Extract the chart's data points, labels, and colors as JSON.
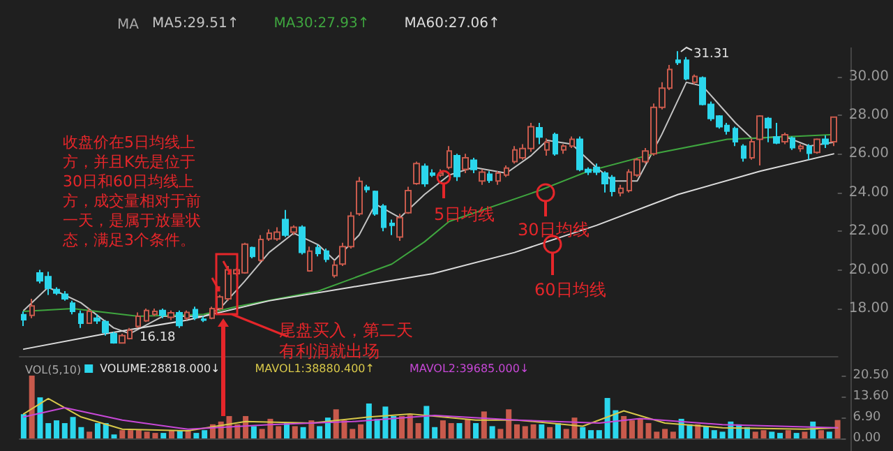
{
  "chart_data": [
    {
      "type": "candlestick",
      "legend_title": "MA",
      "legend": "top left",
      "grid": false,
      "tick_labels": "y",
      "colors": [
        "#2bd6ec",
        "#c85a4c",
        "#2bd6ec",
        "#2bd6ec",
        "#2bd6ec",
        "#2bd6ec",
        "#2bd6ec",
        "#2bd6ec",
        "#c85a4c",
        "#2bd6ec",
        "#2bd6ec",
        "#2bd6ec",
        "#c85a4c",
        "#c85a4c",
        "#c85a4c",
        "#c85a4c",
        "#c85a4c",
        "#2bd6ec",
        "#c85a4c",
        "#2bd6ec",
        "#c85a4c",
        "#2bd6ec",
        "#2bd6ec",
        "#c85a4c",
        "#c85a4c",
        "#c85a4c",
        "#c85a4c",
        "#c85a4c",
        "#2bd6ec",
        "#c85a4c",
        "#c85a4c",
        "#c85a4c",
        "#2bd6ec",
        "#c85a4c",
        "#2bd6ec",
        "#c85a4c",
        "#2bd6ec",
        "#2bd6ec",
        "#c85a4c",
        "#c85a4c",
        "#c85a4c",
        "#c85a4c",
        "#2bd6ec",
        "#2bd6ec",
        "#2bd6ec",
        "#2bd6ec",
        "#c85a4c",
        "#c85a4c",
        "#c85a4c",
        "#2bd6ec",
        "#2bd6ec",
        "#c85a4c",
        "#c85a4c",
        "#2bd6ec",
        "#c85a4c",
        "#2bd6ec",
        "#c85a4c",
        "#2bd6ec",
        "#c85a4c",
        "#c85a4c",
        "#c85a4c",
        "#c85a4c",
        "#c85a4c",
        "#2bd6ec",
        "#c85a4c",
        "#2bd6ec",
        "#c85a4c",
        "#c85a4c",
        "#2bd6ec",
        "#2bd6ec",
        "#2bd6ec",
        "#2bd6ec",
        "#2bd6ec",
        "#c85a4c",
        "#c85a4c",
        "#c85a4c",
        "#c85a4c",
        "#c85a4c",
        "#c85a4c",
        "#c85a4c",
        "#2bd6ec",
        "#2bd6ec",
        "#c85a4c",
        "#2bd6ec",
        "#2bd6ec",
        "#2bd6ec",
        "#2bd6ec",
        "#2bd6ec",
        "#2bd6ec",
        "#c85a4c",
        "#c85a4c",
        "#2bd6ec",
        "#2bd6ec",
        "#c85a4c",
        "#2bd6ec",
        "#c85a4c",
        "#2bd6ec",
        "#c85a4c",
        "#2bd6ec",
        "#c85a4c"
      ],
      "categories": [
        null,
        null,
        null,
        null,
        null,
        null,
        null,
        null,
        null,
        null,
        null,
        null,
        null,
        null,
        null,
        null,
        null,
        null,
        null,
        null,
        null,
        null,
        null,
        null,
        null,
        null,
        null,
        null,
        null,
        null,
        null,
        null,
        null,
        null,
        null,
        null,
        null,
        null,
        null,
        null,
        null,
        null,
        null,
        null,
        null,
        null,
        null,
        null,
        null,
        null,
        null,
        null,
        null,
        null,
        null,
        null,
        null,
        null,
        null,
        null,
        null,
        null,
        null,
        null,
        null,
        null,
        null,
        null,
        null,
        null,
        null,
        null,
        null,
        null,
        null,
        null,
        null,
        null,
        null,
        null,
        null,
        null,
        null,
        null,
        null,
        null,
        null,
        null,
        null,
        null,
        null,
        null,
        null,
        null,
        null,
        null,
        null,
        null,
        null,
        null
      ],
      "ylim": [
        15.5,
        31.5
      ],
      "yticks": [
        {
          "value": 18,
          "label": "18.00"
        },
        {
          "value": 20,
          "label": "20.00"
        },
        {
          "value": 22,
          "label": "22.00"
        },
        {
          "value": 24,
          "label": "24.00"
        },
        {
          "value": 26,
          "label": "26.00"
        },
        {
          "value": 28,
          "label": "28.00"
        },
        {
          "value": 30,
          "label": "30.00"
        }
      ],
      "ohlc": [
        [
          17.68,
          17.85,
          17.1,
          17.42
        ],
        [
          17.65,
          18.5,
          17.5,
          18.13
        ],
        [
          19.84,
          20.0,
          19.3,
          19.43
        ],
        [
          19.65,
          19.9,
          18.7,
          19.05
        ],
        [
          18.98,
          19.1,
          18.7,
          18.8
        ],
        [
          18.74,
          18.9,
          18.4,
          18.5
        ],
        [
          18.28,
          18.4,
          17.7,
          17.85
        ],
        [
          17.73,
          17.9,
          17.0,
          17.24
        ],
        [
          17.24,
          18.0,
          17.2,
          17.85
        ],
        [
          17.5,
          17.7,
          17.2,
          17.37
        ],
        [
          17.32,
          17.4,
          16.6,
          16.76
        ],
        [
          16.7,
          16.8,
          16.18,
          16.23
        ],
        [
          16.22,
          16.7,
          16.18,
          16.6
        ],
        [
          16.45,
          17.0,
          16.4,
          16.88
        ],
        [
          17.08,
          17.8,
          17.0,
          17.6
        ],
        [
          17.37,
          18.0,
          17.3,
          17.9
        ],
        [
          17.7,
          18.0,
          17.6,
          17.85
        ],
        [
          17.9,
          18.0,
          17.5,
          17.65
        ],
        [
          17.55,
          17.9,
          17.4,
          17.78
        ],
        [
          17.78,
          17.9,
          17.0,
          17.12
        ],
        [
          17.5,
          17.9,
          17.4,
          17.8
        ],
        [
          17.94,
          18.1,
          17.4,
          17.53
        ],
        [
          17.45,
          17.6,
          17.3,
          17.4
        ],
        [
          17.5,
          18.1,
          17.45,
          18.0
        ],
        [
          18.0,
          18.7,
          17.9,
          18.6
        ],
        [
          18.5,
          20.2,
          18.4,
          20.0
        ],
        [
          19.8,
          20.1,
          19.7,
          20.0
        ],
        [
          19.85,
          21.4,
          19.8,
          21.33
        ],
        [
          21.15,
          21.2,
          20.6,
          20.7
        ],
        [
          20.5,
          21.8,
          20.4,
          21.57
        ],
        [
          21.6,
          22.1,
          21.5,
          21.9
        ],
        [
          21.6,
          22.2,
          21.5,
          21.95
        ],
        [
          22.6,
          23.1,
          21.7,
          21.8
        ],
        [
          21.95,
          22.3,
          21.8,
          22.2
        ],
        [
          22.2,
          22.3,
          20.8,
          20.9
        ],
        [
          19.95,
          21.2,
          19.9,
          20.97
        ],
        [
          21.15,
          21.3,
          20.7,
          20.85
        ],
        [
          20.97,
          21.1,
          20.4,
          20.55
        ],
        [
          19.7,
          20.5,
          19.6,
          20.25
        ],
        [
          20.3,
          21.4,
          20.2,
          21.2
        ],
        [
          21.2,
          23.0,
          21.1,
          22.78
        ],
        [
          22.9,
          24.8,
          22.8,
          24.58
        ],
        [
          24.27,
          24.4,
          24.0,
          24.15
        ],
        [
          24.05,
          24.1,
          22.8,
          22.9
        ],
        [
          23.3,
          23.4,
          22.0,
          22.2
        ],
        [
          22.4,
          22.6,
          21.8,
          22.3
        ],
        [
          21.7,
          22.9,
          21.5,
          22.7
        ],
        [
          22.95,
          24.3,
          22.9,
          24.1
        ],
        [
          24.46,
          25.6,
          24.4,
          25.5
        ],
        [
          25.35,
          25.5,
          24.3,
          24.46
        ],
        [
          25.0,
          25.2,
          24.8,
          24.9
        ],
        [
          24.9,
          25.2,
          24.8,
          25.0
        ],
        [
          25.3,
          26.4,
          25.2,
          26.15
        ],
        [
          25.9,
          26.0,
          24.6,
          24.83
        ],
        [
          25.2,
          26.0,
          25.0,
          25.8
        ],
        [
          25.67,
          25.8,
          25.0,
          25.19
        ],
        [
          24.6,
          25.2,
          24.4,
          25.06
        ],
        [
          24.95,
          25.1,
          24.5,
          24.63
        ],
        [
          24.6,
          25.1,
          24.4,
          25.0
        ],
        [
          24.9,
          25.4,
          24.8,
          25.26
        ],
        [
          25.6,
          26.4,
          25.5,
          26.2
        ],
        [
          25.8,
          26.5,
          25.7,
          26.27
        ],
        [
          26.27,
          27.6,
          26.1,
          27.4
        ],
        [
          27.35,
          27.6,
          26.5,
          26.87
        ],
        [
          26.2,
          26.8,
          25.9,
          26.6
        ],
        [
          27.0,
          27.1,
          25.9,
          26.0
        ],
        [
          26.2,
          26.5,
          26.0,
          26.4
        ],
        [
          26.4,
          26.9,
          26.3,
          26.75
        ],
        [
          26.75,
          26.9,
          25.1,
          25.19
        ],
        [
          25.19,
          25.3,
          24.9,
          25.06
        ],
        [
          25.3,
          25.5,
          24.9,
          25.06
        ],
        [
          25.0,
          25.1,
          24.0,
          24.46
        ],
        [
          24.78,
          24.9,
          23.8,
          24.06
        ],
        [
          23.98,
          24.4,
          23.8,
          24.22
        ],
        [
          24.1,
          25.2,
          24.0,
          25.06
        ],
        [
          24.9,
          25.8,
          24.8,
          25.7
        ],
        [
          25.6,
          26.3,
          25.5,
          26.15
        ],
        [
          26.0,
          28.6,
          25.9,
          28.4
        ],
        [
          28.4,
          29.7,
          28.3,
          29.4
        ],
        [
          29.4,
          30.6,
          29.3,
          30.36
        ],
        [
          30.84,
          31.31,
          30.6,
          30.72
        ],
        [
          30.84,
          31.0,
          29.8,
          29.88
        ],
        [
          29.7,
          30.1,
          29.6,
          30.0
        ],
        [
          29.93,
          30.0,
          28.5,
          28.56
        ],
        [
          28.56,
          28.7,
          27.7,
          27.83
        ],
        [
          27.95,
          28.0,
          27.3,
          27.4
        ],
        [
          27.47,
          27.6,
          27.0,
          27.18
        ],
        [
          27.3,
          27.4,
          26.4,
          26.63
        ],
        [
          26.39,
          26.5,
          25.6,
          25.79
        ],
        [
          25.8,
          26.8,
          25.7,
          26.63
        ],
        [
          26.75,
          28.0,
          25.4,
          27.95
        ],
        [
          27.83,
          27.9,
          26.6,
          27.35
        ],
        [
          26.87,
          27.6,
          26.5,
          26.56
        ],
        [
          26.63,
          27.1,
          26.5,
          26.99
        ],
        [
          26.82,
          26.9,
          26.2,
          26.32
        ],
        [
          26.27,
          26.5,
          26.1,
          26.39
        ],
        [
          26.39,
          26.5,
          25.7,
          26.03
        ],
        [
          26.08,
          26.8,
          26.0,
          26.75
        ],
        [
          26.75,
          26.95,
          26.3,
          26.51
        ],
        [
          26.63,
          27.9,
          26.4,
          27.9
        ]
      ],
      "series": [
        {
          "type": "line",
          "name": "MA5:29.51↑",
          "color": "#c4c4c4",
          "values": [
            17.9,
            null,
            null,
            19.1,
            null,
            null,
            null,
            18.3,
            null,
            null,
            null,
            17.0,
            null,
            16.7,
            null,
            null,
            null,
            17.6,
            null,
            null,
            null,
            null,
            17.6,
            null,
            18.0,
            null,
            null,
            19.4,
            null,
            null,
            20.9,
            null,
            null,
            21.9,
            null,
            null,
            21.3,
            null,
            20.5,
            null,
            null,
            21.8,
            null,
            23.4,
            null,
            null,
            22.7,
            null,
            null,
            23.9,
            null,
            null,
            24.9,
            null,
            null,
            25.3,
            null,
            null,
            null,
            25.0,
            null,
            null,
            25.9,
            null,
            26.7,
            null,
            null,
            26.5,
            null,
            null,
            25.3,
            null,
            24.6,
            null,
            null,
            24.6,
            null,
            null,
            27.0,
            null,
            null,
            29.7,
            null,
            29.5,
            null,
            null,
            null,
            27.6,
            null,
            26.8,
            null,
            null,
            null,
            26.9,
            null,
            null,
            26.4,
            null,
            null,
            26.6
          ]
        },
        {
          "type": "line",
          "name": "MA30:27.93↑",
          "color": "#3fa63f",
          "values": [
            17.85,
            null,
            null,
            null,
            null,
            null,
            18.0,
            null,
            null,
            null,
            null,
            null,
            null,
            null,
            17.6,
            null,
            null,
            null,
            null,
            null,
            null,
            null,
            17.7,
            null,
            null,
            null,
            18.1,
            null,
            null,
            null,
            null,
            null,
            null,
            null,
            null,
            null,
            18.9,
            null,
            null,
            null,
            null,
            null,
            null,
            null,
            null,
            20.3,
            null,
            null,
            null,
            21.45,
            null,
            null,
            22.5,
            null,
            null,
            null,
            null,
            null,
            null,
            null,
            null,
            null,
            null,
            24.1,
            null,
            null,
            null,
            null,
            null,
            25.1,
            null,
            null,
            null,
            null,
            null,
            null,
            null,
            26.0,
            null,
            null,
            null,
            null,
            null,
            null,
            null,
            null,
            26.75,
            null,
            null,
            null,
            null,
            null,
            null,
            null,
            26.9,
            null,
            null,
            null,
            null,
            27.0
          ]
        },
        {
          "type": "line",
          "name": "MA60:27.06↑",
          "color": "#dcdcdc",
          "values": [
            15.9,
            null,
            null,
            null,
            null,
            null,
            null,
            null,
            null,
            null,
            16.7,
            null,
            null,
            null,
            null,
            null,
            null,
            null,
            null,
            null,
            17.4,
            null,
            null,
            null,
            null,
            null,
            null,
            null,
            null,
            null,
            18.4,
            null,
            null,
            null,
            null,
            null,
            null,
            null,
            null,
            null,
            19.1,
            null,
            null,
            null,
            null,
            null,
            null,
            null,
            null,
            null,
            19.8,
            null,
            null,
            null,
            null,
            null,
            null,
            null,
            null,
            null,
            20.9,
            null,
            null,
            null,
            null,
            null,
            null,
            null,
            null,
            null,
            22.3,
            null,
            null,
            null,
            null,
            null,
            null,
            null,
            null,
            null,
            23.9,
            null,
            null,
            null,
            null,
            null,
            null,
            null,
            null,
            null,
            25.1,
            null,
            null,
            null,
            null,
            null,
            null,
            null,
            null,
            26.0
          ]
        }
      ],
      "annotations": [
        "收盘价在5日均线上方，并且K先是位于30日和60日均线上方，成交量相对于前一天，是属于放量状态，满足3个条件。",
        "尾盘买入，第二天有利润就出场",
        "5日均线",
        "30日均线",
        "60日均线",
        "31.31",
        "16.18"
      ]
    },
    {
      "type": "bar",
      "legend_title": "VOL(5,10)",
      "legend": "top left",
      "grid": false,
      "tick_labels": "y",
      "categories": [
        null,
        null,
        null,
        null,
        null,
        null,
        null,
        null,
        null,
        null,
        null,
        null,
        null,
        null,
        null,
        null,
        null,
        null,
        null,
        null,
        null,
        null,
        null,
        null,
        null,
        null,
        null,
        null,
        null,
        null,
        null,
        null,
        null,
        null,
        null,
        null,
        null,
        null,
        null,
        null,
        null,
        null,
        null,
        null,
        null,
        null,
        null,
        null,
        null,
        null,
        null,
        null,
        null,
        null,
        null,
        null,
        null,
        null,
        null,
        null,
        null,
        null,
        null,
        null,
        null,
        null,
        null,
        null,
        null,
        null,
        null,
        null,
        null,
        null,
        null,
        null,
        null,
        null,
        null,
        null,
        null,
        null,
        null,
        null,
        null,
        null,
        null,
        null,
        null,
        null,
        null,
        null,
        null,
        null,
        null,
        null,
        null,
        null,
        null,
        null
      ],
      "ylim": [
        0,
        20.5
      ],
      "yticks": [
        {
          "value": 0,
          "label": "0.00"
        },
        {
          "value": 6.9,
          "label": "6.90"
        },
        {
          "value": 13.6,
          "label": "13.60"
        },
        {
          "value": 20.5,
          "label": "20.50"
        }
      ],
      "series": [
        {
          "type": "bar",
          "name": "VOLUME:28818.000↓",
          "colors": [
            "#2bd6ec",
            "#c85a4c",
            "#2bd6ec",
            "#2bd6ec",
            "#2bd6ec",
            "#2bd6ec",
            "#2bd6ec",
            "#2bd6ec",
            "#c85a4c",
            "#2bd6ec",
            "#2bd6ec",
            "#2bd6ec",
            "#c85a4c",
            "#c85a4c",
            "#c85a4c",
            "#c85a4c",
            "#c85a4c",
            "#2bd6ec",
            "#c85a4c",
            "#2bd6ec",
            "#c85a4c",
            "#2bd6ec",
            "#2bd6ec",
            "#c85a4c",
            "#c85a4c",
            "#c85a4c",
            "#c85a4c",
            "#c85a4c",
            "#2bd6ec",
            "#c85a4c",
            "#c85a4c",
            "#c85a4c",
            "#2bd6ec",
            "#c85a4c",
            "#2bd6ec",
            "#c85a4c",
            "#2bd6ec",
            "#2bd6ec",
            "#c85a4c",
            "#c85a4c",
            "#c85a4c",
            "#c85a4c",
            "#2bd6ec",
            "#2bd6ec",
            "#2bd6ec",
            "#2bd6ec",
            "#c85a4c",
            "#c85a4c",
            "#c85a4c",
            "#2bd6ec",
            "#2bd6ec",
            "#c85a4c",
            "#c85a4c",
            "#2bd6ec",
            "#c85a4c",
            "#2bd6ec",
            "#c85a4c",
            "#2bd6ec",
            "#c85a4c",
            "#c85a4c",
            "#c85a4c",
            "#c85a4c",
            "#c85a4c",
            "#2bd6ec",
            "#c85a4c",
            "#2bd6ec",
            "#c85a4c",
            "#c85a4c",
            "#2bd6ec",
            "#2bd6ec",
            "#2bd6ec",
            "#2bd6ec",
            "#2bd6ec",
            "#c85a4c",
            "#c85a4c",
            "#c85a4c",
            "#c85a4c",
            "#c85a4c",
            "#c85a4c",
            "#c85a4c",
            "#2bd6ec",
            "#2bd6ec",
            "#c85a4c",
            "#2bd6ec",
            "#2bd6ec",
            "#2bd6ec",
            "#2bd6ec",
            "#2bd6ec",
            "#2bd6ec",
            "#c85a4c",
            "#c85a4c",
            "#2bd6ec",
            "#2bd6ec",
            "#c85a4c",
            "#2bd6ec",
            "#c85a4c",
            "#2bd6ec",
            "#c85a4c",
            "#2bd6ec",
            "#c85a4c"
          ],
          "values": [
            7.9,
            20.5,
            13.4,
            5.0,
            5.9,
            5.0,
            7.0,
            3.7,
            2.2,
            5.0,
            5.0,
            1.3,
            2.7,
            2.7,
            2.7,
            2.2,
            1.8,
            1.8,
            2.7,
            2.7,
            2.7,
            1.8,
            2.7,
            4.6,
            5.5,
            7.3,
            4.6,
            7.3,
            4.0,
            3.1,
            6.4,
            4.0,
            5.0,
            4.0,
            3.7,
            5.9,
            4.0,
            6.8,
            9.5,
            5.9,
            3.1,
            4.6,
            11.4,
            6.4,
            10.4,
            7.3,
            7.3,
            7.7,
            5.0,
            10.6,
            3.7,
            5.9,
            5.0,
            5.0,
            6.4,
            5.0,
            8.8,
            4.0,
            3.1,
            9.5,
            4.6,
            4.0,
            4.6,
            4.6,
            3.7,
            5.0,
            3.1,
            6.8,
            3.7,
            2.7,
            2.7,
            13.2,
            9.2,
            7.3,
            5.9,
            6.4,
            5.0,
            2.2,
            3.1,
            2.2,
            6.4,
            4.6,
            4.6,
            4.0,
            2.7,
            2.2,
            5.5,
            4.6,
            3.7,
            2.2,
            2.7,
            2.2,
            1.8,
            2.7,
            1.8,
            2.2,
            5.5,
            2.7,
            2.2,
            6.0
          ]
        },
        {
          "type": "line",
          "name": "MAVOL1:38880.400↑",
          "color": "#d8c84a",
          "values": [
            8,
            null,
            null,
            13,
            null,
            null,
            null,
            7,
            null,
            null,
            null,
            null,
            3,
            null,
            null,
            null,
            null,
            null,
            null,
            null,
            2.5,
            null,
            null,
            null,
            null,
            null,
            null,
            5.5,
            null,
            null,
            null,
            null,
            null,
            null,
            null,
            5,
            null,
            null,
            null,
            null,
            null,
            null,
            7,
            null,
            null,
            null,
            null,
            8,
            null,
            null,
            null,
            null,
            null,
            null,
            null,
            6,
            null,
            null,
            null,
            null,
            6,
            null,
            null,
            null,
            null,
            null,
            null,
            null,
            4,
            null,
            null,
            null,
            null,
            9,
            null,
            null,
            null,
            null,
            5,
            null,
            null,
            null,
            null,
            null,
            null,
            3.5,
            null,
            null,
            null,
            null,
            null,
            null,
            null,
            null,
            null,
            3,
            null,
            null,
            null,
            3.5
          ]
        },
        {
          "type": "line",
          "name": "MAVOL2:39685.000↓",
          "color": "#c848d8",
          "values": [
            7,
            null,
            null,
            null,
            null,
            10,
            null,
            null,
            null,
            null,
            null,
            null,
            6,
            null,
            null,
            null,
            null,
            null,
            null,
            null,
            3,
            null,
            null,
            null,
            null,
            null,
            null,
            null,
            null,
            null,
            4.5,
            null,
            null,
            null,
            null,
            null,
            null,
            null,
            null,
            null,
            5.5,
            null,
            null,
            null,
            null,
            null,
            null,
            null,
            null,
            null,
            7.5,
            null,
            null,
            null,
            null,
            null,
            null,
            null,
            null,
            null,
            6,
            null,
            null,
            null,
            null,
            null,
            null,
            null,
            null,
            null,
            5,
            null,
            null,
            null,
            null,
            6.5,
            null,
            null,
            null,
            null,
            null,
            null,
            null,
            null,
            null,
            4.5,
            null,
            null,
            null,
            null,
            null,
            null,
            null,
            null,
            null,
            null,
            null,
            null,
            null,
            3.5
          ]
        }
      ]
    }
  ]
}
